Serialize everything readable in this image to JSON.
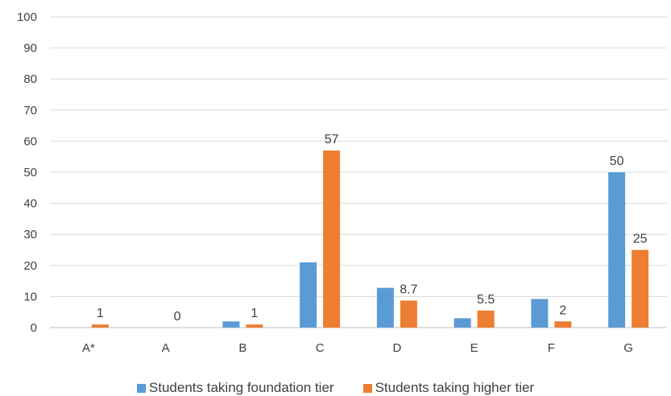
{
  "chart_data": {
    "type": "bar",
    "categories": [
      "A*",
      "A",
      "B",
      "C",
      "D",
      "E",
      "F",
      "G"
    ],
    "series": [
      {
        "name": "Students taking foundation tier",
        "color": "#5b9bd5",
        "values": [
          0,
          0,
          2,
          21,
          12.8,
          3,
          9.2,
          50
        ],
        "labels": [
          "",
          "",
          "",
          "",
          "",
          "",
          "",
          "50"
        ]
      },
      {
        "name": "Students taking higher tier",
        "color": "#ed7d31",
        "values": [
          1,
          0,
          1,
          57,
          8.7,
          5.5,
          2,
          25
        ],
        "labels": [
          "1",
          "0",
          "1",
          "57",
          "8.7",
          "5.5",
          "2",
          "25"
        ]
      }
    ],
    "ylim": [
      0,
      100
    ],
    "yticks": [
      "0",
      "10",
      "20",
      "30",
      "40",
      "50",
      "60",
      "70",
      "80",
      "90",
      "100"
    ],
    "grid": true,
    "legend": "bottom"
  }
}
